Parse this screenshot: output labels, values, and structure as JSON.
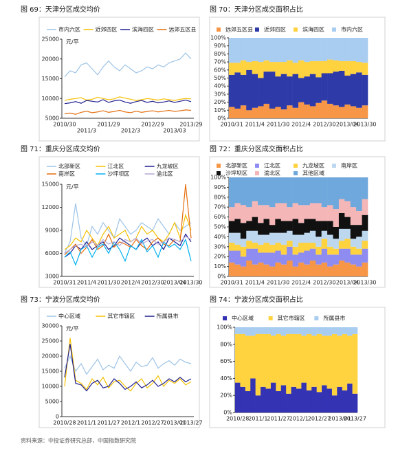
{
  "chart_data": [
    {
      "type": "line",
      "title": "图 69：天津分区成交均价",
      "y_unit": "元/平",
      "categories": [
        "2010/30",
        null,
        null,
        null,
        "2011/3",
        null,
        null,
        null,
        "2011/29",
        null,
        null,
        null,
        "2012/3",
        null,
        null,
        null,
        "2012/29",
        null,
        null,
        null,
        "2013/03",
        null,
        null,
        "2013/29"
      ],
      "series": [
        {
          "name": "市内六区",
          "color": "#9dc3e6",
          "values": [
            15500,
            17000,
            16500,
            18500,
            19000,
            17500,
            16000,
            18000,
            19500,
            18000,
            17000,
            18500,
            17500,
            16500,
            17000,
            18000,
            17500,
            18500,
            18000,
            19000,
            19500,
            20000,
            21500,
            20000
          ]
        },
        {
          "name": "近郊四区",
          "color": "#f5c000",
          "values": [
            9500,
            9800,
            10000,
            10200,
            9600,
            9800,
            10300,
            10000,
            9700,
            9900,
            10400,
            10100,
            9800,
            9500,
            9700,
            10000,
            9800,
            9600,
            9900,
            9700,
            9500,
            9800,
            10000,
            9900
          ]
        },
        {
          "name": "滨海四区",
          "color": "#1f1f8f",
          "values": [
            8700,
            8900,
            9200,
            8800,
            9500,
            9300,
            9100,
            9700,
            9000,
            9400,
            9600,
            9100,
            8800,
            9200,
            9500,
            9000,
            9300,
            8900,
            9100,
            9400,
            9000,
            9300,
            9600,
            9200
          ]
        },
        {
          "name": "远郊五区县",
          "color": "#e46c0a",
          "values": [
            6100,
            6300,
            6000,
            6500,
            6800,
            6400,
            6600,
            6900,
            6500,
            6700,
            7000,
            6600,
            6400,
            6800,
            6500,
            6700,
            6900,
            6600,
            6800,
            7000,
            6700,
            6900,
            7100,
            7000
          ]
        }
      ],
      "ylim": [
        5000,
        25000
      ],
      "yticks": [
        5000,
        10000,
        15000,
        20000,
        25000
      ]
    },
    {
      "type": "stacked_bar",
      "title": "图 70：天津分区成交面积占比",
      "categories": [
        "2010/31",
        null,
        null,
        null,
        "2011/4",
        null,
        null,
        null,
        "2011/30",
        null,
        null,
        null,
        "2012/4",
        null,
        null,
        null,
        "2012/30",
        null,
        null,
        null,
        "2013/04",
        null,
        null,
        "2013/30"
      ],
      "series": [
        {
          "name": "远郊五区县",
          "color": "#f79646",
          "values": [
            14,
            12,
            16,
            10,
            13,
            15,
            18,
            12,
            14,
            11,
            16,
            13,
            20,
            17,
            15,
            19,
            22,
            18,
            16,
            14,
            17,
            15,
            13,
            16
          ]
        },
        {
          "name": "近郊四区",
          "color": "#2e3aa8",
          "values": [
            40,
            45,
            38,
            50,
            42,
            35,
            40,
            46,
            38,
            44,
            36,
            42,
            30,
            35,
            40,
            32,
            34,
            38,
            42,
            45,
            36,
            40,
            44,
            38
          ]
        },
        {
          "name": "滨海四区",
          "color": "#ffd23f",
          "values": [
            15,
            12,
            18,
            10,
            16,
            20,
            14,
            12,
            18,
            15,
            20,
            14,
            22,
            18,
            16,
            20,
            15,
            17,
            14,
            12,
            18,
            16,
            13,
            15
          ]
        },
        {
          "name": "市内六区",
          "color": "#a9cdf0",
          "values": [
            31,
            31,
            28,
            30,
            29,
            30,
            28,
            30,
            30,
            30,
            28,
            31,
            28,
            30,
            29,
            29,
            29,
            27,
            28,
            29,
            29,
            29,
            30,
            31
          ]
        }
      ],
      "ylim": [
        0,
        100
      ],
      "yticks": [
        {
          "value": 0,
          "label": "0%"
        },
        {
          "value": 10,
          "label": "10%"
        },
        {
          "value": 20,
          "label": "20%"
        },
        {
          "value": 30,
          "label": "30%"
        },
        {
          "value": 40,
          "label": "40%"
        },
        {
          "value": 50,
          "label": "50%"
        },
        {
          "value": 60,
          "label": "60%"
        },
        {
          "value": 70,
          "label": "70%"
        },
        {
          "value": 80,
          "label": "80%"
        },
        {
          "value": 90,
          "label": "90%"
        },
        {
          "value": 100,
          "label": "100%"
        }
      ]
    },
    {
      "type": "line",
      "title": "图 71：重庆分区成交均价",
      "y_unit": "元/平",
      "categories": [
        "2010/31",
        null,
        null,
        null,
        "2011/4",
        null,
        null,
        null,
        "2011/30",
        null,
        null,
        null,
        "2012/4",
        null,
        null,
        null,
        "2012/30",
        null,
        null,
        null,
        "2013/04",
        null,
        null,
        "2013/30"
      ],
      "series": [
        {
          "name": "北部新区",
          "color": "#9dc3e6",
          "values": [
            6000,
            7500,
            12500,
            8000,
            7000,
            9500,
            8500,
            10000,
            9000,
            8000,
            10500,
            9500,
            8500,
            9000,
            10000,
            9500,
            9000,
            10500,
            9500,
            8500,
            10000,
            9000,
            9500,
            10000
          ]
        },
        {
          "name": "江北区",
          "color": "#f5c000",
          "values": [
            6500,
            7000,
            8000,
            7500,
            9000,
            8000,
            7000,
            8500,
            9500,
            8000,
            8500,
            9000,
            7500,
            8000,
            9500,
            8500,
            9000,
            8000,
            7500,
            8500,
            10000,
            8000,
            11000,
            9000
          ]
        },
        {
          "name": "九龙坡区",
          "color": "#1f1f8f",
          "values": [
            5500,
            6000,
            7000,
            6500,
            7500,
            6500,
            7000,
            7500,
            6500,
            7000,
            8000,
            7500,
            7000,
            6500,
            7500,
            8000,
            7000,
            7500,
            6500,
            8000,
            7500,
            7000,
            8500,
            7500
          ]
        },
        {
          "name": "南岸区",
          "color": "#e46c0a",
          "values": [
            5800,
            6500,
            7200,
            6000,
            6800,
            7800,
            6500,
            7000,
            8500,
            6800,
            7500,
            7200,
            6800,
            7800,
            7000,
            6500,
            7500,
            8000,
            7200,
            7000,
            7800,
            7500,
            15000,
            8000
          ]
        },
        {
          "name": "沙坪坝区",
          "color": "#00b0f0",
          "values": [
            5500,
            6200,
            4500,
            6500,
            7000,
            5500,
            6800,
            7200,
            6000,
            7500,
            6500,
            5000,
            7000,
            6500,
            7800,
            6200,
            7000,
            5500,
            7500,
            6800,
            7200,
            6500,
            7800,
            5000
          ]
        },
        {
          "name": "渝北区",
          "color": "#b4a7d6",
          "values": [
            6000,
            6500,
            7000,
            7200,
            6800,
            7500,
            7000,
            7800,
            7200,
            7500,
            7000,
            7800,
            7500,
            8000,
            7200,
            7600,
            7800,
            7200,
            7500,
            8000,
            7800,
            7500,
            8200,
            7800
          ]
        }
      ],
      "ylim": [
        3000,
        15000
      ],
      "yticks": [
        3000,
        6000,
        9000,
        12000,
        15000
      ]
    },
    {
      "type": "stacked_bar",
      "title": "图 72：重庆分区成交面积占比",
      "categories": [
        "2010/31",
        null,
        null,
        null,
        "2011/4",
        null,
        null,
        null,
        "2011/30",
        null,
        null,
        null,
        "2012/4",
        null,
        null,
        null,
        "2012/30",
        null,
        null,
        null,
        "2013/04",
        null,
        null,
        "2013/30"
      ],
      "series": [
        {
          "name": "北部新区",
          "color": "#f79646",
          "values": [
            14,
            12,
            10,
            16,
            12,
            14,
            12,
            10,
            14,
            12,
            16,
            10,
            14,
            12,
            16,
            12,
            14,
            10,
            12,
            16,
            14,
            12,
            10,
            14
          ]
        },
        {
          "name": "江北区",
          "color": "#8e8cf0",
          "values": [
            12,
            14,
            10,
            12,
            16,
            10,
            12,
            14,
            12,
            10,
            14,
            12,
            10,
            14,
            12,
            10,
            14,
            12,
            10,
            12,
            14,
            10,
            12,
            14
          ]
        },
        {
          "name": "九龙坡区",
          "color": "#ffd23f",
          "values": [
            8,
            6,
            10,
            8,
            6,
            8,
            10,
            8,
            8,
            10,
            6,
            8,
            10,
            8,
            6,
            8,
            10,
            8,
            6,
            8,
            10,
            8,
            6,
            8
          ]
        },
        {
          "name": "南岸区",
          "color": "#bdd7ee",
          "values": [
            10,
            12,
            8,
            10,
            12,
            10,
            8,
            12,
            10,
            12,
            10,
            12,
            8,
            10,
            12,
            10,
            8,
            12,
            10,
            12,
            10,
            8,
            12,
            10
          ]
        },
        {
          "name": "沙坪坝区",
          "color": "#111111",
          "values": [
            12,
            14,
            16,
            10,
            14,
            12,
            16,
            8,
            14,
            12,
            10,
            16,
            12,
            14,
            12,
            16,
            10,
            14,
            12,
            16,
            12,
            14,
            12,
            16
          ]
        },
        {
          "name": "渝北区",
          "color": "#f4b6b6",
          "values": [
            14,
            16,
            18,
            14,
            16,
            18,
            14,
            18,
            16,
            18,
            14,
            16,
            18,
            14,
            16,
            18,
            14,
            16,
            18,
            14,
            16,
            18,
            14,
            16
          ]
        },
        {
          "name": "其他区域",
          "color": "#6fa8dc",
          "values": [
            30,
            26,
            28,
            30,
            24,
            28,
            28,
            30,
            26,
            26,
            30,
            26,
            28,
            28,
            26,
            26,
            30,
            28,
            32,
            22,
            24,
            30,
            34,
            22
          ]
        }
      ],
      "ylim": [
        0,
        100
      ],
      "yticks": [
        {
          "value": 0,
          "label": "0%"
        },
        {
          "value": 10,
          "label": "10%"
        },
        {
          "value": 20,
          "label": "20%"
        },
        {
          "value": 30,
          "label": "30%"
        },
        {
          "value": 40,
          "label": "40%"
        },
        {
          "value": 50,
          "label": "50%"
        },
        {
          "value": 60,
          "label": "60%"
        },
        {
          "value": 70,
          "label": "70%"
        },
        {
          "value": 80,
          "label": "80%"
        },
        {
          "value": 90,
          "label": "90%"
        },
        {
          "value": 100,
          "label": "100%"
        }
      ]
    },
    {
      "type": "line",
      "title": "图 73：宁波分区成交均价",
      "y_unit": "元/平",
      "categories": [
        "2010/28",
        null,
        null,
        null,
        "2011/1",
        null,
        null,
        null,
        "2011/27",
        null,
        null,
        null,
        "2012/1",
        null,
        null,
        null,
        "2012/27",
        null,
        null,
        null,
        "2013/01",
        null,
        null,
        "2013/27"
      ],
      "series": [
        {
          "name": "中心区域",
          "color": "#9dc3e6",
          "values": [
            16000,
            20000,
            15000,
            17500,
            14000,
            16500,
            19000,
            15500,
            17000,
            16000,
            20000,
            17500,
            15000,
            18000,
            16500,
            17000,
            19500,
            16000,
            17500,
            18500,
            17000,
            19000,
            18000,
            17500
          ]
        },
        {
          "name": "其它市辖区",
          "color": "#f5c000",
          "values": [
            10000,
            26000,
            12000,
            11000,
            9000,
            12500,
            10500,
            13000,
            9500,
            11500,
            12000,
            10000,
            8500,
            11000,
            12500,
            9500,
            11000,
            13500,
            10000,
            12000,
            11000,
            12500,
            10500,
            11500
          ]
        },
        {
          "name": "所属县市",
          "color": "#1f1f8f",
          "values": [
            13000,
            24000,
            11000,
            10500,
            8500,
            11000,
            12000,
            9500,
            10000,
            12500,
            11000,
            9000,
            10000,
            11500,
            9500,
            10500,
            12000,
            10000,
            11000,
            12500,
            11500,
            13000,
            11500,
            12500
          ]
        }
      ],
      "ylim": [
        0,
        30000
      ],
      "yticks": [
        0,
        5000,
        10000,
        15000,
        20000,
        25000,
        30000
      ]
    },
    {
      "type": "stacked_bar",
      "title": "图 74：宁波分区成交面积占比",
      "categories": [
        "2010/28",
        null,
        null,
        null,
        "2011/1",
        null,
        null,
        null,
        "2011/27",
        null,
        null,
        null,
        "2012/1",
        null,
        null,
        null,
        "2012/27",
        null,
        null,
        null,
        "2013/01",
        null,
        null,
        "2013/27"
      ],
      "series": [
        {
          "name": "中心区域",
          "color": "#3333b3",
          "values": [
            35,
            30,
            25,
            40,
            20,
            30,
            28,
            35,
            25,
            32,
            22,
            30,
            28,
            35,
            26,
            30,
            24,
            32,
            28,
            20,
            30,
            26,
            34,
            22
          ]
        },
        {
          "name": "其它市辖区",
          "color": "#ffd23f",
          "values": [
            57,
            62,
            65,
            50,
            72,
            62,
            64,
            55,
            67,
            58,
            70,
            62,
            64,
            55,
            66,
            60,
            68,
            58,
            62,
            72,
            60,
            66,
            56,
            70
          ]
        },
        {
          "name": "所属县市",
          "color": "#a9cdf0",
          "values": [
            8,
            8,
            10,
            10,
            8,
            8,
            8,
            10,
            8,
            10,
            8,
            8,
            8,
            10,
            8,
            10,
            8,
            10,
            10,
            8,
            10,
            8,
            10,
            8
          ]
        }
      ],
      "ylim": [
        0,
        100
      ],
      "yticks": [
        {
          "value": 0,
          "label": "0%"
        },
        {
          "value": 20,
          "label": "20%"
        },
        {
          "value": 40,
          "label": "40%"
        },
        {
          "value": 60,
          "label": "60%"
        },
        {
          "value": 80,
          "label": "80%"
        },
        {
          "value": 100,
          "label": "100%"
        }
      ]
    }
  ],
  "source": "资料来源：中投证券研究总部，中国指数研究院"
}
